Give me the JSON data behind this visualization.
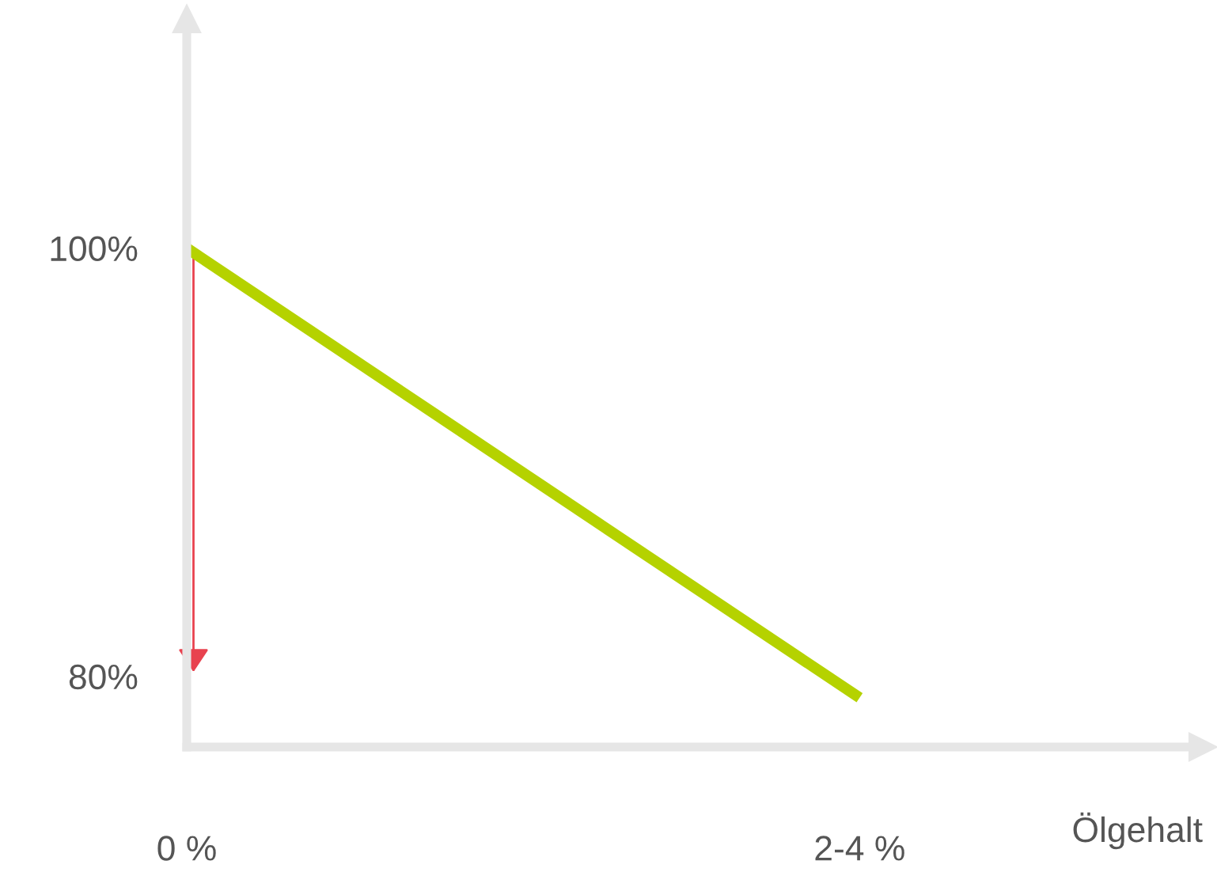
{
  "chart_data": {
    "type": "line",
    "xlabel": "Ölgehalt",
    "categories": [
      "0 %",
      "2-4 %"
    ],
    "series": [
      {
        "color": "#b5d200",
        "values": [
          100,
          79
        ]
      }
    ],
    "ylim": [
      76.7,
      110.7
    ],
    "yticks": [
      {
        "value": 100,
        "label": "100%"
      },
      {
        "value": 80,
        "label": "80%"
      }
    ],
    "grid": false,
    "legend": false
  }
}
